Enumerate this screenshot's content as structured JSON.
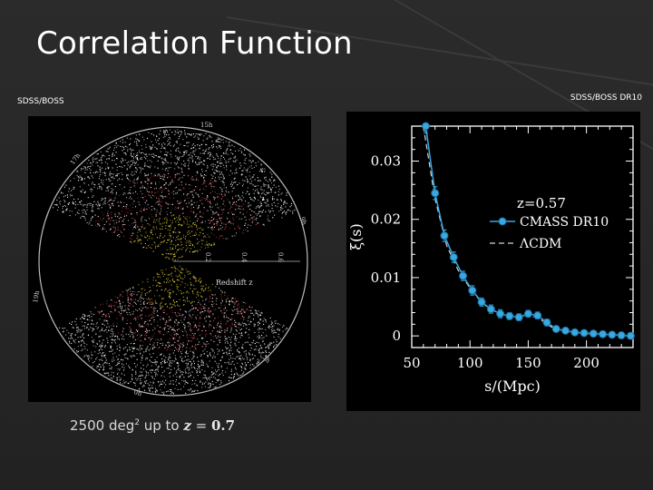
{
  "slide": {
    "title": "Correlation Function",
    "left_caption": "SDSS/BOSS",
    "right_caption": "SDSS/BOSS DR10",
    "bottom_caption": {
      "prefix": "2500 deg",
      "exponent": "2",
      "middle": " up to ",
      "variable": "z",
      "equals": " = ",
      "value": "0.7"
    }
  },
  "survey_map": {
    "colors": {
      "galaxies_outer": "#ffffff",
      "galaxies_mid": "#cc3333",
      "galaxies_inner": "#e8d23a"
    },
    "redshift_label": "Redshift  z",
    "redshift_ticks": [
      "0.2",
      "0.4",
      "0.6"
    ],
    "ra_labels": [
      "15h",
      "17h",
      "9h",
      "19h",
      "3h",
      "0h"
    ]
  },
  "chart_data": {
    "type": "line",
    "annotation": "z=0.57",
    "xlabel": "s/(Mpc)",
    "ylabel": "ξ(s)",
    "xlim": [
      50,
      240
    ],
    "ylim": [
      -0.002,
      0.036
    ],
    "xticks": [
      50,
      100,
      150,
      200
    ],
    "yticks": [
      0,
      0.01,
      0.02,
      0.03
    ],
    "ytick_labels": [
      "0",
      "0.01",
      "0.02",
      "0.03"
    ],
    "legend_position": "upper-right",
    "series": [
      {
        "name": "CMASS  DR10",
        "color": "#39a8e0",
        "x": [
          62,
          70,
          78,
          86,
          94,
          102,
          110,
          118,
          126,
          134,
          142,
          150,
          158,
          166,
          174,
          182,
          190,
          198,
          206,
          214,
          222,
          230,
          238
        ],
        "y": [
          0.036,
          0.0245,
          0.0172,
          0.0135,
          0.0103,
          0.0078,
          0.0058,
          0.0046,
          0.0038,
          0.0034,
          0.0032,
          0.0038,
          0.0035,
          0.0023,
          0.0012,
          0.0009,
          0.0006,
          0.0005,
          0.0004,
          0.0003,
          0.0002,
          0.0001,
          0.0
        ],
        "yerr": [
          0.0012,
          0.0011,
          0.001,
          0.0009,
          0.0008,
          0.0008,
          0.0007,
          0.0007,
          0.0007,
          0.0006,
          0.0006,
          0.0006,
          0.0006,
          0.0006,
          0.0005,
          0.0005,
          0.0005,
          0.0005,
          0.0005,
          0.0005,
          0.0005,
          0.0005,
          0.0005
        ]
      },
      {
        "name": "ΛCDM",
        "color": "#cfd8dc",
        "style": "dashed",
        "x": [
          60,
          70,
          80,
          90,
          100,
          110,
          120,
          130,
          140,
          150,
          160,
          170,
          180,
          190,
          200,
          210,
          220,
          230,
          240
        ],
        "y": [
          0.037,
          0.0235,
          0.0155,
          0.0112,
          0.0082,
          0.0057,
          0.0043,
          0.0034,
          0.0031,
          0.0036,
          0.0029,
          0.0015,
          0.0009,
          0.0006,
          0.0004,
          0.0003,
          0.0002,
          0.0001,
          0.0
        ]
      }
    ]
  }
}
